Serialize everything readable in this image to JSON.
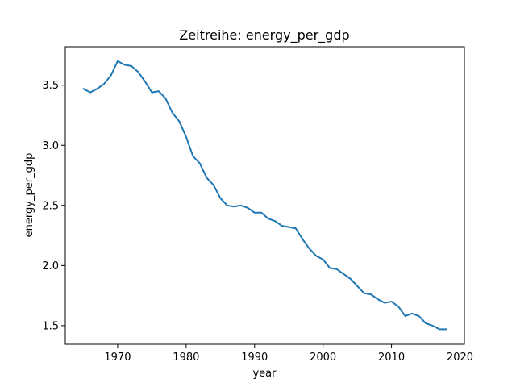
{
  "chart_data": {
    "type": "line",
    "title": "Zeitreihe: energy_per_gdp",
    "xlabel": "year",
    "ylabel": "energy_per_gdp",
    "xlim": [
      1962.35,
      2020.65
    ],
    "ylim": [
      1.345,
      3.82
    ],
    "xticks": [
      1970,
      1980,
      1990,
      2000,
      2010,
      2020
    ],
    "yticks": [
      1.5,
      2.0,
      2.5,
      3.0,
      3.5
    ],
    "xtick_labels": [
      "1970",
      "1980",
      "1990",
      "2000",
      "2010",
      "2020"
    ],
    "ytick_labels": [
      "1.5",
      "2.0",
      "2.5",
      "3.0",
      "3.5"
    ],
    "grid": false,
    "line_color": "#1f77b4",
    "series": [
      {
        "x": [
          1965,
          1966,
          1967,
          1968,
          1969,
          1970,
          1971,
          1972,
          1973,
          1974,
          1975,
          1976,
          1977,
          1978,
          1979,
          1980,
          1981,
          1982,
          1983,
          1984,
          1985,
          1986,
          1987,
          1988,
          1989,
          1990,
          1991,
          1992,
          1993,
          1994,
          1995,
          1996,
          1997,
          1998,
          1999,
          2000,
          2001,
          2002,
          2003,
          2004,
          2005,
          2006,
          2007,
          2008,
          2009,
          2010,
          2011,
          2012,
          2013,
          2014,
          2015,
          2016,
          2017,
          2018
        ],
        "y": [
          3.47,
          3.44,
          3.47,
          3.51,
          3.58,
          3.7,
          3.67,
          3.66,
          3.61,
          3.53,
          3.44,
          3.45,
          3.39,
          3.27,
          3.2,
          3.07,
          2.91,
          2.85,
          2.73,
          2.67,
          2.56,
          2.5,
          2.49,
          2.5,
          2.48,
          2.44,
          2.44,
          2.39,
          2.37,
          2.33,
          2.32,
          2.31,
          2.22,
          2.14,
          2.08,
          2.05,
          1.98,
          1.97,
          1.93,
          1.89,
          1.83,
          1.77,
          1.76,
          1.72,
          1.69,
          1.7,
          1.66,
          1.58,
          1.6,
          1.58,
          1.52,
          1.5,
          1.47,
          1.47
        ]
      }
    ]
  }
}
